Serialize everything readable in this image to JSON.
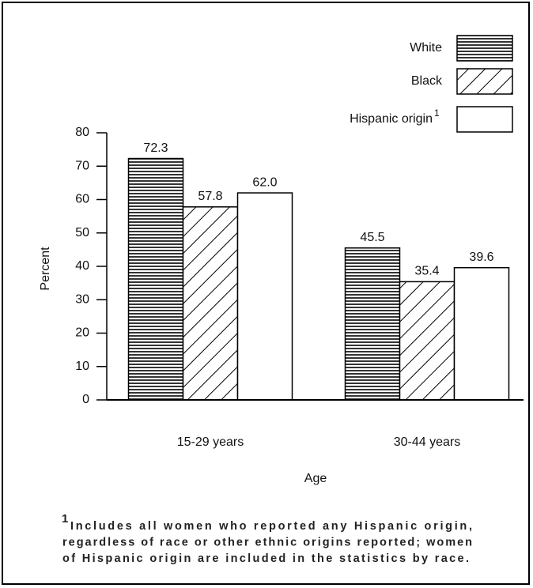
{
  "chart_data": {
    "type": "bar",
    "x_label": "Age",
    "y_label": "Percent",
    "categories": [
      "15-29 years",
      "30-44 years"
    ],
    "series": [
      {
        "name": "White",
        "color": "#000000",
        "pattern": "horizontal",
        "values": [
          72.3,
          45.5
        ]
      },
      {
        "name": "Black",
        "color": "#000000",
        "pattern": "diagonal",
        "values": [
          57.8,
          35.4
        ]
      },
      {
        "name": "Hispanic origin",
        "color": "#000000",
        "pattern": "none",
        "values": [
          62.0,
          39.6
        ],
        "value_labels": [
          "62.0",
          "39.6"
        ]
      }
    ],
    "ylim": [
      0,
      80
    ],
    "yticks": [
      0,
      10,
      20,
      30,
      40,
      50,
      60,
      70,
      80
    ],
    "grid": false,
    "legend": "top-right",
    "footnote": {
      "marker": "1",
      "lines": [
        "Includes all women who reported any Hispanic origin,",
        "regardless of race or other ethnic origins reported; women",
        "of Hispanic origin are included in the statistics by race."
      ]
    }
  }
}
